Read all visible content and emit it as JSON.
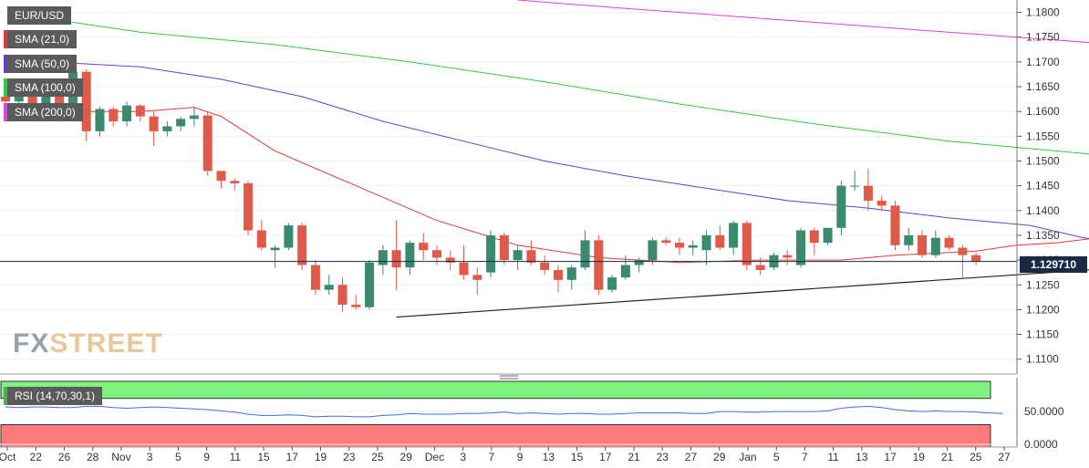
{
  "legend": [
    {
      "label": "EUR/USD",
      "color": "#ffffff"
    },
    {
      "label": "SMA (21,0)",
      "color": "#e53935"
    },
    {
      "label": "SMA (50,0)",
      "color": "#6a3dc8"
    },
    {
      "label": "SMA (100,0)",
      "color": "#2ecc40"
    },
    {
      "label": "SMA (200,0)",
      "color": "#e040e0"
    }
  ],
  "logo": {
    "part1": "FX",
    "part2": "STREET"
  },
  "price_tag": "1.129710",
  "rsi_label": "RSI (14,70,30,1)",
  "colors": {
    "up": "#3a8a6e",
    "down": "#e05a4a",
    "rsi_line": "#3f6fd8",
    "rsi_over": "#7ef27e",
    "rsi_under": "#ff7a7a",
    "trend": "#222222",
    "price_line": "#1a2a44"
  },
  "chart_data": {
    "type": "candlestick",
    "price_axis": {
      "ticks": [
        1.18,
        1.175,
        1.17,
        1.165,
        1.16,
        1.155,
        1.15,
        1.145,
        1.14,
        1.135,
        1.13,
        1.125,
        1.12,
        1.115,
        1.11
      ],
      "tick_labels": [
        "1.1800",
        "1.1750",
        "1.1700",
        "1.1650",
        "1.1600",
        "1.1550",
        "1.1500",
        "1.1450",
        "1.1400",
        "1.1350",
        "1.1300",
        "1.1250",
        "1.1200",
        "1.1150",
        "1.1100"
      ],
      "range": [
        1.107,
        1.1825
      ]
    },
    "rsi_axis": {
      "ticks": [
        50,
        0
      ],
      "tick_labels": [
        "50.0000",
        "0.0000"
      ],
      "range": [
        -4,
        96
      ]
    },
    "x_tick_labels": [
      "Oct",
      "22",
      "26",
      "28",
      "Nov",
      "3",
      "5",
      "9",
      "11",
      "15",
      "17",
      "19",
      "23",
      "25",
      "29",
      "Dec",
      "3",
      "7",
      "9",
      "13",
      "15",
      "17",
      "21",
      "23",
      "27",
      "29",
      "Jan",
      "5",
      "7",
      "11",
      "13",
      "17",
      "19",
      "21",
      "25",
      "27"
    ],
    "candles": [
      {
        "o": 1.163,
        "h": 1.165,
        "l": 1.159,
        "c": 1.162
      },
      {
        "o": 1.162,
        "h": 1.164,
        "l": 1.1595,
        "c": 1.164
      },
      {
        "o": 1.164,
        "h": 1.166,
        "l": 1.16,
        "c": 1.1615
      },
      {
        "o": 1.1615,
        "h": 1.164,
        "l": 1.159,
        "c": 1.163
      },
      {
        "o": 1.163,
        "h": 1.165,
        "l": 1.16,
        "c": 1.1605
      },
      {
        "o": 1.1605,
        "h": 1.169,
        "l": 1.159,
        "c": 1.168
      },
      {
        "o": 1.168,
        "h": 1.1685,
        "l": 1.154,
        "c": 1.156
      },
      {
        "o": 1.156,
        "h": 1.161,
        "l": 1.155,
        "c": 1.1605
      },
      {
        "o": 1.1605,
        "h": 1.161,
        "l": 1.157,
        "c": 1.158
      },
      {
        "o": 1.158,
        "h": 1.162,
        "l": 1.157,
        "c": 1.1612
      },
      {
        "o": 1.1612,
        "h": 1.1615,
        "l": 1.158,
        "c": 1.159
      },
      {
        "o": 1.159,
        "h": 1.16,
        "l": 1.153,
        "c": 1.156
      },
      {
        "o": 1.156,
        "h": 1.158,
        "l": 1.155,
        "c": 1.157
      },
      {
        "o": 1.157,
        "h": 1.159,
        "l": 1.156,
        "c": 1.1585
      },
      {
        "o": 1.1585,
        "h": 1.161,
        "l": 1.157,
        "c": 1.1592
      },
      {
        "o": 1.1592,
        "h": 1.16,
        "l": 1.147,
        "c": 1.148
      },
      {
        "o": 1.148,
        "h": 1.148,
        "l": 1.1445,
        "c": 1.146
      },
      {
        "o": 1.146,
        "h": 1.1465,
        "l": 1.144,
        "c": 1.1455
      },
      {
        "o": 1.1455,
        "h": 1.146,
        "l": 1.135,
        "c": 1.136
      },
      {
        "o": 1.136,
        "h": 1.138,
        "l": 1.132,
        "c": 1.1325
      },
      {
        "o": 1.132,
        "h": 1.133,
        "l": 1.1285,
        "c": 1.1325
      },
      {
        "o": 1.1325,
        "h": 1.1375,
        "l": 1.132,
        "c": 1.137
      },
      {
        "o": 1.137,
        "h": 1.1375,
        "l": 1.128,
        "c": 1.129
      },
      {
        "o": 1.129,
        "h": 1.13,
        "l": 1.123,
        "c": 1.124
      },
      {
        "o": 1.124,
        "h": 1.127,
        "l": 1.123,
        "c": 1.125
      },
      {
        "o": 1.125,
        "h": 1.1265,
        "l": 1.1195,
        "c": 1.121
      },
      {
        "o": 1.121,
        "h": 1.123,
        "l": 1.12,
        "c": 1.1205
      },
      {
        "o": 1.1205,
        "h": 1.13,
        "l": 1.12,
        "c": 1.1295
      },
      {
        "o": 1.129,
        "h": 1.133,
        "l": 1.127,
        "c": 1.132
      },
      {
        "o": 1.132,
        "h": 1.138,
        "l": 1.124,
        "c": 1.1285
      },
      {
        "o": 1.1285,
        "h": 1.134,
        "l": 1.127,
        "c": 1.1335
      },
      {
        "o": 1.1335,
        "h": 1.1355,
        "l": 1.13,
        "c": 1.132
      },
      {
        "o": 1.132,
        "h": 1.133,
        "l": 1.129,
        "c": 1.1305
      },
      {
        "o": 1.1305,
        "h": 1.132,
        "l": 1.128,
        "c": 1.1295
      },
      {
        "o": 1.1295,
        "h": 1.133,
        "l": 1.126,
        "c": 1.127
      },
      {
        "o": 1.127,
        "h": 1.1285,
        "l": 1.123,
        "c": 1.126
      },
      {
        "o": 1.1275,
        "h": 1.136,
        "l": 1.1265,
        "c": 1.135
      },
      {
        "o": 1.135,
        "h": 1.1355,
        "l": 1.129,
        "c": 1.13
      },
      {
        "o": 1.13,
        "h": 1.133,
        "l": 1.128,
        "c": 1.132
      },
      {
        "o": 1.132,
        "h": 1.134,
        "l": 1.129,
        "c": 1.1295
      },
      {
        "o": 1.1295,
        "h": 1.131,
        "l": 1.127,
        "c": 1.128
      },
      {
        "o": 1.128,
        "h": 1.129,
        "l": 1.1235,
        "c": 1.126
      },
      {
        "o": 1.126,
        "h": 1.129,
        "l": 1.124,
        "c": 1.1285
      },
      {
        "o": 1.1285,
        "h": 1.136,
        "l": 1.128,
        "c": 1.134
      },
      {
        "o": 1.134,
        "h": 1.135,
        "l": 1.123,
        "c": 1.124
      },
      {
        "o": 1.124,
        "h": 1.127,
        "l": 1.1235,
        "c": 1.1265
      },
      {
        "o": 1.1265,
        "h": 1.131,
        "l": 1.126,
        "c": 1.129
      },
      {
        "o": 1.129,
        "h": 1.1305,
        "l": 1.1275,
        "c": 1.13
      },
      {
        "o": 1.13,
        "h": 1.1345,
        "l": 1.129,
        "c": 1.134
      },
      {
        "o": 1.134,
        "h": 1.1345,
        "l": 1.133,
        "c": 1.1335
      },
      {
        "o": 1.1335,
        "h": 1.1345,
        "l": 1.131,
        "c": 1.1325
      },
      {
        "o": 1.1325,
        "h": 1.134,
        "l": 1.131,
        "c": 1.133
      },
      {
        "o": 1.132,
        "h": 1.136,
        "l": 1.129,
        "c": 1.135
      },
      {
        "o": 1.135,
        "h": 1.137,
        "l": 1.132,
        "c": 1.1325
      },
      {
        "o": 1.1325,
        "h": 1.138,
        "l": 1.131,
        "c": 1.1375
      },
      {
        "o": 1.1375,
        "h": 1.138,
        "l": 1.128,
        "c": 1.129
      },
      {
        "o": 1.129,
        "h": 1.1305,
        "l": 1.127,
        "c": 1.128
      },
      {
        "o": 1.1285,
        "h": 1.1315,
        "l": 1.128,
        "c": 1.131
      },
      {
        "o": 1.131,
        "h": 1.132,
        "l": 1.129,
        "c": 1.1305
      },
      {
        "o": 1.129,
        "h": 1.1365,
        "l": 1.1285,
        "c": 1.136
      },
      {
        "o": 1.136,
        "h": 1.1365,
        "l": 1.131,
        "c": 1.1335
      },
      {
        "o": 1.1335,
        "h": 1.1365,
        "l": 1.133,
        "c": 1.1365
      },
      {
        "o": 1.1365,
        "h": 1.146,
        "l": 1.135,
        "c": 1.145
      },
      {
        "o": 1.145,
        "h": 1.148,
        "l": 1.144,
        "c": 1.145
      },
      {
        "o": 1.145,
        "h": 1.1485,
        "l": 1.14,
        "c": 1.142
      },
      {
        "o": 1.142,
        "h": 1.143,
        "l": 1.14,
        "c": 1.141
      },
      {
        "o": 1.141,
        "h": 1.142,
        "l": 1.132,
        "c": 1.133
      },
      {
        "o": 1.133,
        "h": 1.1365,
        "l": 1.132,
        "c": 1.135
      },
      {
        "o": 1.135,
        "h": 1.136,
        "l": 1.1305,
        "c": 1.131
      },
      {
        "o": 1.131,
        "h": 1.136,
        "l": 1.1305,
        "c": 1.1345
      },
      {
        "o": 1.1345,
        "h": 1.135,
        "l": 1.132,
        "c": 1.1325
      },
      {
        "o": 1.1325,
        "h": 1.133,
        "l": 1.1265,
        "c": 1.131
      },
      {
        "o": 1.131,
        "h": 1.1315,
        "l": 1.129,
        "c": 1.1297
      }
    ],
    "series": [
      {
        "name": "SMA (21,0)",
        "color": "#e53935",
        "points": [
          [
            0,
            1.16
          ],
          [
            10,
            1.16
          ],
          [
            14,
            1.1608
          ],
          [
            16,
            1.159
          ],
          [
            20,
            1.152
          ],
          [
            26,
            1.145
          ],
          [
            32,
            1.138
          ],
          [
            38,
            1.133
          ],
          [
            44,
            1.1305
          ],
          [
            50,
            1.1295
          ],
          [
            56,
            1.13
          ],
          [
            62,
            1.13
          ],
          [
            66,
            1.131
          ],
          [
            72,
            1.1318
          ],
          [
            75,
            1.133
          ],
          [
            78,
            1.1335
          ],
          [
            81,
            1.1345
          ],
          [
            90,
            1.1347
          ]
        ]
      },
      {
        "name": "SMA (50,0)",
        "color": "#6a3dc8",
        "points": [
          [
            0,
            1.1705
          ],
          [
            10,
            1.169
          ],
          [
            16,
            1.1665
          ],
          [
            22,
            1.163
          ],
          [
            28,
            1.158
          ],
          [
            34,
            1.154
          ],
          [
            40,
            1.15
          ],
          [
            46,
            1.147
          ],
          [
            52,
            1.1445
          ],
          [
            58,
            1.142
          ],
          [
            64,
            1.1405
          ],
          [
            70,
            1.1385
          ],
          [
            76,
            1.137
          ],
          [
            80,
            1.1345
          ],
          [
            84,
            1.1332
          ],
          [
            87,
            1.1325
          ],
          [
            90,
            1.1318
          ]
        ]
      },
      {
        "name": "SMA (100,0)",
        "color": "#2ecc40",
        "points": [
          [
            0,
            1.18
          ],
          [
            10,
            1.176
          ],
          [
            20,
            1.1735
          ],
          [
            30,
            1.17
          ],
          [
            40,
            1.166
          ],
          [
            50,
            1.1615
          ],
          [
            60,
            1.1575
          ],
          [
            70,
            1.154
          ],
          [
            80,
            1.1515
          ],
          [
            85,
            1.15
          ],
          [
            90,
            1.1465
          ]
        ]
      },
      {
        "name": "SMA (200,0)",
        "color": "#e040e0",
        "points": [
          [
            38,
            1.1825
          ],
          [
            45,
            1.181
          ],
          [
            55,
            1.179
          ],
          [
            65,
            1.177
          ],
          [
            75,
            1.175
          ],
          [
            85,
            1.173
          ],
          [
            90,
            1.1705
          ]
        ]
      }
    ],
    "trendline": {
      "start": [
        29,
        1.1185
      ],
      "end": [
        91,
        1.13
      ]
    },
    "current_price": 1.12971,
    "rsi": [
      57,
      56,
      57,
      57,
      56,
      56,
      58,
      58,
      56,
      55,
      56,
      57,
      56,
      55,
      54,
      53,
      51,
      49,
      46,
      44,
      44,
      45,
      44,
      42,
      43,
      43,
      42,
      42,
      44,
      45,
      47,
      46,
      46,
      46,
      47,
      47,
      48,
      49,
      47,
      48,
      47,
      46,
      47,
      47,
      46,
      46,
      47,
      48,
      48,
      48,
      48,
      47,
      47,
      50,
      50,
      49,
      49,
      50,
      50,
      50,
      50,
      51,
      55,
      57,
      58,
      56,
      53,
      51,
      50,
      51,
      50,
      50,
      49,
      48,
      47
    ]
  }
}
